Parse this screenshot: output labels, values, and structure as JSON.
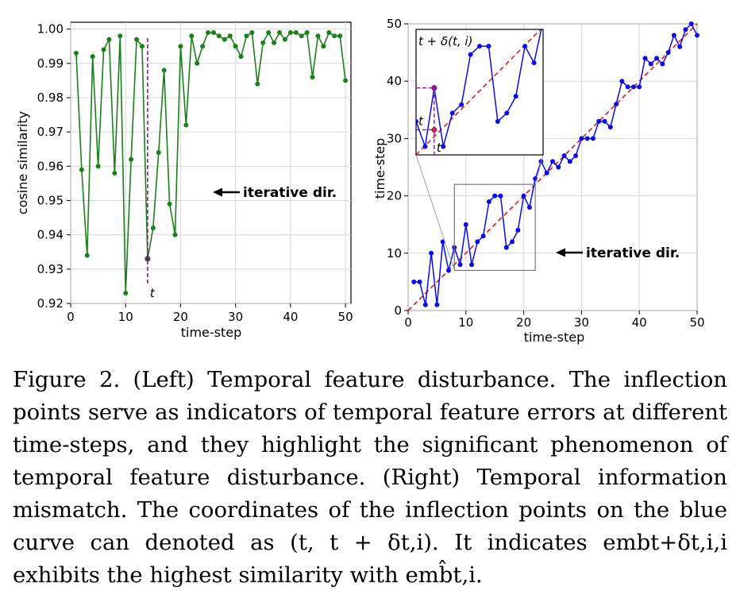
{
  "figure": {
    "caption_label": "Figure 2.",
    "caption_text": "(Left) Temporal feature disturbance. The inflection points serve as indicators of temporal feature errors at different time-steps, and they highlight the significant phenomenon of temporal feature disturbance. (Right) Temporal information mismatch. The coordinates of the inflection points on the blue curve can denoted as (t, t + δt,i). It indicates embt+δt,i,i exhibits the highest similarity with emb̂t,i."
  },
  "colors": {
    "green": "#1a801a",
    "blue": "#0a0aee",
    "red": "#ee1111",
    "purple": "#8c1a8c",
    "grid": "#d8d8d8"
  },
  "chart_data": [
    {
      "type": "line",
      "title": "",
      "xlabel": "time-step",
      "ylabel": "cosine similarity",
      "xlim": [
        0,
        51
      ],
      "ylim": [
        0.92,
        1.002
      ],
      "xticks": [
        "0",
        "10",
        "20",
        "30",
        "40",
        "50"
      ],
      "yticks": [
        "0.92",
        "0.93",
        "0.94",
        "0.95",
        "0.96",
        "0.97",
        "0.98",
        "0.99",
        "1.00"
      ],
      "grid": true,
      "series": [
        {
          "color": "#1a801a",
          "x": [
            1,
            2,
            3,
            4,
            5,
            6,
            7,
            8,
            9,
            10,
            11,
            12,
            13,
            14,
            15,
            16,
            17,
            18,
            19,
            20,
            21,
            22,
            23,
            24,
            25,
            26,
            27,
            28,
            29,
            30,
            31,
            32,
            33,
            34,
            35,
            36,
            37,
            38,
            39,
            40,
            41,
            42,
            43,
            44,
            45,
            46,
            47,
            48,
            49,
            50
          ],
          "y": [
            0.993,
            0.959,
            0.934,
            0.992,
            0.96,
            0.994,
            0.997,
            0.958,
            0.998,
            0.923,
            0.962,
            0.997,
            0.995,
            0.933,
            0.942,
            0.964,
            0.988,
            0.949,
            0.94,
            0.995,
            0.972,
            0.998,
            0.99,
            0.995,
            0.999,
            0.999,
            0.998,
            0.997,
            0.998,
            0.995,
            0.992,
            0.998,
            0.999,
            0.984,
            0.996,
            0.999,
            0.996,
            0.999,
            0.997,
            0.999,
            0.999,
            0.998,
            0.999,
            0.986,
            0.998,
            0.995,
            0.999,
            0.998,
            0.998,
            0.985
          ]
        }
      ],
      "marker_point": {
        "x": 14,
        "y": 0.933,
        "label": "t"
      },
      "annotation": "iterative dir."
    },
    {
      "type": "line",
      "title": "",
      "xlabel": "time-step",
      "ylabel": "time-step",
      "xlim": [
        0,
        50
      ],
      "ylim": [
        0,
        50
      ],
      "xticks": [
        "0",
        "10",
        "20",
        "30",
        "40",
        "50"
      ],
      "yticks": [
        "0",
        "10",
        "20",
        "30",
        "40",
        "50"
      ],
      "grid": true,
      "series": [
        {
          "color": "#0a0aee",
          "x": [
            1,
            2,
            3,
            4,
            5,
            6,
            7,
            8,
            9,
            10,
            11,
            12,
            13,
            14,
            15,
            16,
            17,
            18,
            19,
            20,
            21,
            22,
            23,
            24,
            25,
            26,
            27,
            28,
            29,
            30,
            31,
            32,
            33,
            34,
            35,
            36,
            37,
            38,
            39,
            40,
            41,
            42,
            43,
            44,
            45,
            46,
            47,
            48,
            49,
            50
          ],
          "y": [
            5,
            5,
            1,
            10,
            1,
            12,
            7,
            11,
            8,
            15,
            8,
            12,
            13,
            19,
            20,
            20,
            11,
            12,
            14,
            20,
            18,
            23,
            26,
            24,
            26,
            25,
            27,
            26,
            27,
            30,
            30,
            30,
            33,
            33,
            32,
            36,
            40,
            39,
            39,
            39,
            44,
            43,
            44,
            43,
            45,
            48,
            46,
            49,
            50,
            48
          ]
        },
        {
          "color": "#ee1111",
          "dashed": true,
          "x": [
            0,
            50
          ],
          "y": [
            0,
            50
          ]
        }
      ],
      "inset": {
        "xlim": [
          8,
          22
        ],
        "ylim": [
          7,
          22
        ],
        "point": {
          "x": 10,
          "y": 15
        },
        "label_shifted": "t + δ(t, i)",
        "label_t_y": "t",
        "label_t_x": "t"
      },
      "annotation": "iterative dir."
    }
  ]
}
